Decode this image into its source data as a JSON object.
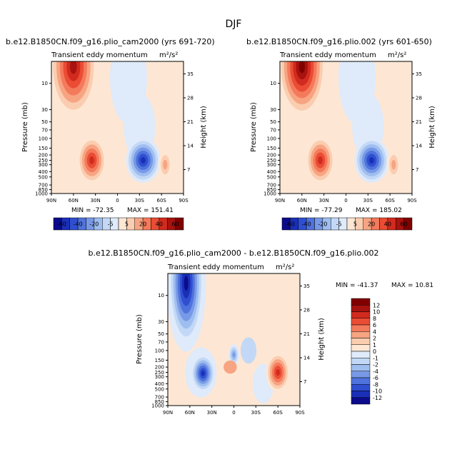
{
  "figure": {
    "title": "DJF"
  },
  "colors": {
    "positive": [
      "#fde7d4",
      "#fbcdb0",
      "#f7a482",
      "#f47a5c",
      "#ea4c34",
      "#d12a1e",
      "#a8120f",
      "#800000"
    ],
    "negative": [
      "#dfeafa",
      "#c2d8f6",
      "#9fbef0",
      "#7799e6",
      "#4f72dc",
      "#2f4fd0",
      "#1a2fb8",
      "#0b0b8c"
    ],
    "background": "#ffffff"
  },
  "chart_data": [
    {
      "type": "heatmap",
      "panel": "top-left",
      "title": "b.e12.B1850CN.f09_g16.plio_cam2000 (yrs 691-720)",
      "subtitle": "Transient eddy momentum",
      "units": "m²/s²",
      "ylabel_left": "Pressure (mb)",
      "ylabel_right": "Height (km)",
      "xticks": [
        "90N",
        "60N",
        "30N",
        "0",
        "30S",
        "60S",
        "90S"
      ],
      "yticks_left": [
        "10",
        "30",
        "50",
        "70",
        "100",
        "150",
        "200",
        "250",
        "300",
        "400",
        "500",
        "700",
        "850",
        "1000"
      ],
      "yticks_right": [
        "35",
        "28",
        "21",
        "14",
        "7"
      ],
      "stats": {
        "min_label": "MIN = -72.35",
        "max_label": "MAX = 151.41",
        "min": -72.35,
        "max": 151.41
      },
      "features": [
        {
          "lat": 60,
          "pressure": 5,
          "value": 150
        },
        {
          "lat": 35,
          "pressure": 250,
          "value": 60
        },
        {
          "lat": -35,
          "pressure": 250,
          "value": -70
        },
        {
          "lat": -65,
          "pressure": 300,
          "value": 20
        }
      ]
    },
    {
      "type": "heatmap",
      "panel": "top-right",
      "title": "b.e12.B1850CN.f09_g16.plio.002 (yrs 601-650)",
      "subtitle": "Transient eddy momentum",
      "units": "m²/s²",
      "ylabel_left": "Pressure (mb)",
      "ylabel_right": "Height (km)",
      "xticks": [
        "90N",
        "60N",
        "30N",
        "0",
        "30S",
        "60S",
        "90S"
      ],
      "yticks_left": [
        "10",
        "30",
        "50",
        "70",
        "100",
        "150",
        "200",
        "250",
        "300",
        "400",
        "500",
        "700",
        "850",
        "1000"
      ],
      "yticks_right": [
        "35",
        "28",
        "21",
        "14",
        "7"
      ],
      "stats": {
        "min_label": "MIN = -77.29",
        "max_label": "MAX = 185.02",
        "min": -77.29,
        "max": 185.02
      },
      "features": [
        {
          "lat": 60,
          "pressure": 5,
          "value": 185
        },
        {
          "lat": 35,
          "pressure": 250,
          "value": 60
        },
        {
          "lat": -35,
          "pressure": 250,
          "value": -75
        },
        {
          "lat": -65,
          "pressure": 300,
          "value": 20
        }
      ]
    },
    {
      "type": "heatmap",
      "panel": "bottom",
      "title": "b.e12.B1850CN.f09_g16.plio_cam2000 - b.e12.B1850CN.f09_g16.plio.002",
      "subtitle": "Transient eddy momentum",
      "units": "m²/s²",
      "ylabel_left": "Pressure (mb)",
      "ylabel_right": "Height (km)",
      "xticks": [
        "90N",
        "60N",
        "30N",
        "0",
        "30S",
        "60S",
        "90S"
      ],
      "yticks_left": [
        "10",
        "30",
        "50",
        "70",
        "100",
        "150",
        "200",
        "250",
        "300",
        "400",
        "500",
        "700",
        "850",
        "1000"
      ],
      "yticks_right": [
        "35",
        "28",
        "21",
        "14",
        "7"
      ],
      "stats": {
        "min_label": "MIN = -41.37",
        "max_label": "MAX =  10.81",
        "min": -41.37,
        "max": 10.81
      },
      "features": [
        {
          "lat": 65,
          "pressure": 5,
          "value": -40
        },
        {
          "lat": 40,
          "pressure": 250,
          "value": -12
        },
        {
          "lat": -60,
          "pressure": 250,
          "value": 10
        },
        {
          "lat": 0,
          "pressure": 120,
          "value": -6
        }
      ]
    }
  ],
  "colorbar_top": {
    "labels": [
      "-60",
      "-40",
      "-20",
      "-5",
      "5",
      "20",
      "40",
      "60"
    ],
    "levels": [
      -60,
      -50,
      -40,
      -30,
      -20,
      -10,
      -5,
      0,
      5,
      10,
      20,
      30,
      40,
      50,
      60
    ]
  },
  "colorbar_bottom": {
    "labels": [
      "12",
      "10",
      "8",
      "6",
      "4",
      "2",
      "1",
      "0",
      "-1",
      "-2",
      "-4",
      "-6",
      "-8",
      "-10",
      "-12"
    ],
    "levels": [
      12,
      10,
      8,
      6,
      4,
      2,
      1,
      0,
      -1,
      -2,
      -4,
      -6,
      -8,
      -10,
      -12
    ]
  }
}
